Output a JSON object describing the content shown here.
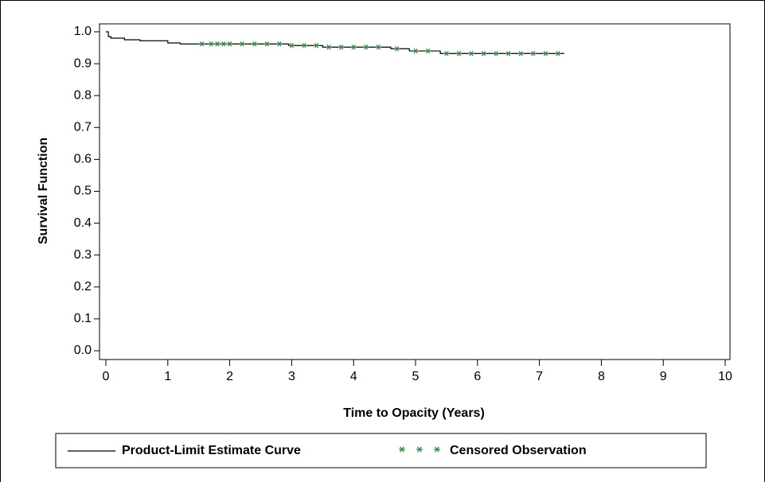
{
  "chart_data": {
    "type": "step",
    "x_label": "Time to Opacity (Years)",
    "y_label": "Survival Function",
    "xlim": [
      0,
      10
    ],
    "ylim": [
      0,
      1
    ],
    "xticks": [
      0,
      1,
      2,
      3,
      4,
      5,
      6,
      7,
      8,
      9,
      10
    ],
    "yticks": [
      {
        "value": 0,
        "label": "0.0"
      },
      0.1,
      0.2,
      0.3,
      0.4,
      0.5,
      0.6,
      0.7,
      0.8,
      0.9,
      {
        "value": 1,
        "label": "1.0"
      }
    ],
    "legend": "bottom",
    "series": [
      {
        "name": "Product-Limit Estimate Curve",
        "color": "#000000",
        "marker": "line",
        "x": [
          0,
          0.04,
          0.08,
          0.3,
          0.55,
          1.0,
          1.2,
          2.95,
          3.5,
          4.6,
          4.9,
          5.4,
          7.4
        ],
        "values": [
          1,
          0.985,
          0.98,
          0.975,
          0.972,
          0.965,
          0.962,
          0.957,
          0.952,
          0.947,
          0.94,
          0.932,
          0.932
        ]
      },
      {
        "name": "Censored Observation",
        "color": "#2e8b3e",
        "marker": "asterisk",
        "x": [
          1.55,
          1.7,
          1.8,
          1.9,
          2.0,
          2.2,
          2.4,
          2.6,
          2.8,
          3.0,
          3.2,
          3.4,
          3.6,
          3.8,
          4.0,
          4.2,
          4.4,
          4.7,
          5.0,
          5.2,
          5.5,
          5.7,
          5.9,
          6.1,
          6.3,
          6.5,
          6.7,
          6.9,
          7.1,
          7.3
        ],
        "values": [
          0.962,
          0.962,
          0.962,
          0.962,
          0.962,
          0.962,
          0.962,
          0.962,
          0.962,
          0.957,
          0.957,
          0.957,
          0.952,
          0.952,
          0.952,
          0.952,
          0.952,
          0.947,
          0.94,
          0.94,
          0.932,
          0.932,
          0.932,
          0.932,
          0.932,
          0.932,
          0.932,
          0.932,
          0.932,
          0.932
        ]
      }
    ]
  }
}
